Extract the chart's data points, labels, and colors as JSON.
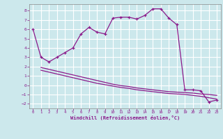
{
  "title": "",
  "xlabel": "Windchill (Refroidissement éolien,°C)",
  "bg_color": "#cce8ec",
  "line_color": "#8b1a8b",
  "grid_color": "#b0d0d8",
  "xlim": [
    -0.5,
    23.5
  ],
  "ylim": [
    -2.5,
    8.7
  ],
  "yticks": [
    -2,
    -1,
    0,
    1,
    2,
    3,
    4,
    5,
    6,
    7,
    8
  ],
  "xticks": [
    0,
    1,
    2,
    3,
    4,
    5,
    6,
    7,
    8,
    9,
    10,
    11,
    12,
    13,
    14,
    15,
    16,
    17,
    18,
    19,
    20,
    21,
    22,
    23
  ],
  "curve1_x": [
    0,
    1,
    2,
    3,
    4,
    5,
    6,
    7,
    8,
    9,
    10,
    11,
    12,
    13,
    14,
    15,
    16,
    17,
    18,
    19,
    20,
    21,
    22,
    23
  ],
  "curve1_y": [
    6.0,
    3.0,
    2.5,
    3.0,
    3.5,
    4.0,
    5.5,
    6.2,
    5.7,
    5.5,
    7.2,
    7.3,
    7.3,
    7.1,
    7.5,
    8.2,
    8.2,
    7.2,
    6.5,
    -0.5,
    -0.5,
    -0.6,
    -1.8,
    -1.6
  ],
  "curve2_x": [
    1,
    2,
    3,
    4,
    5,
    6,
    7,
    8,
    9,
    10,
    11,
    12,
    13,
    14,
    15,
    16,
    17,
    18,
    19,
    20,
    21,
    22,
    23
  ],
  "curve2_y": [
    1.9,
    1.7,
    1.5,
    1.3,
    1.1,
    0.9,
    0.7,
    0.5,
    0.3,
    0.1,
    -0.05,
    -0.15,
    -0.3,
    -0.4,
    -0.5,
    -0.6,
    -0.7,
    -0.75,
    -0.8,
    -0.85,
    -0.95,
    -1.0,
    -1.1
  ],
  "curve3_x": [
    1,
    2,
    3,
    4,
    5,
    6,
    7,
    8,
    9,
    10,
    11,
    12,
    13,
    14,
    15,
    16,
    17,
    18,
    19,
    20,
    21,
    22,
    23
  ],
  "curve3_y": [
    1.6,
    1.4,
    1.2,
    1.0,
    0.8,
    0.6,
    0.4,
    0.2,
    0.05,
    -0.1,
    -0.25,
    -0.35,
    -0.5,
    -0.6,
    -0.7,
    -0.8,
    -0.9,
    -0.95,
    -1.0,
    -1.1,
    -1.2,
    -1.35,
    -1.5
  ]
}
